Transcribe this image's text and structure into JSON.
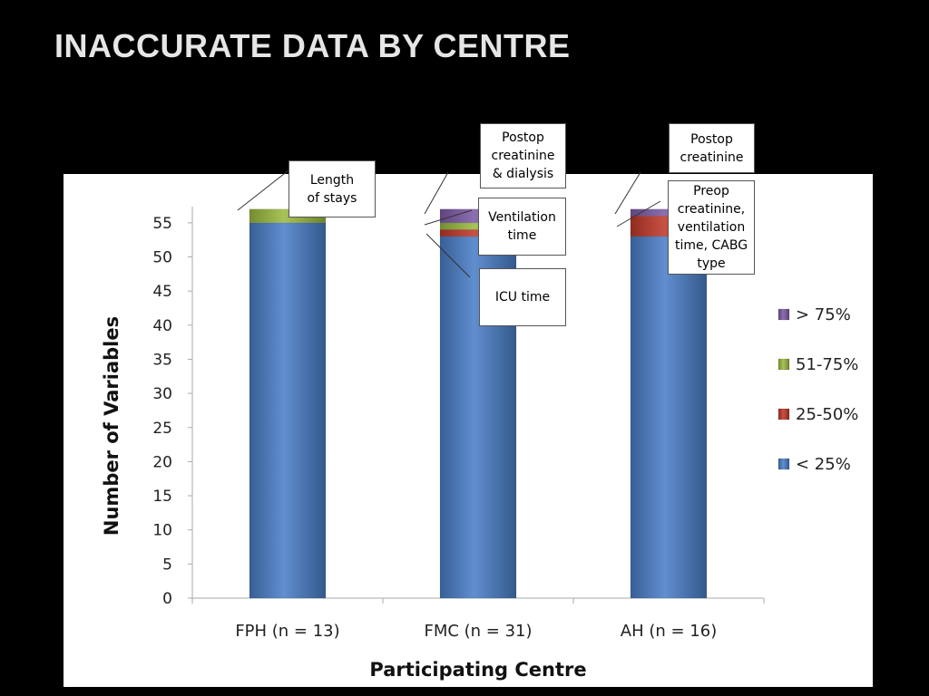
{
  "slide": {
    "title": "INACCURATE DATA BY CENTRE"
  },
  "chart_data": {
    "type": "bar",
    "stacked": true,
    "categories": [
      "FPH (n = 13)",
      "FMC (n = 31)",
      "AH (n = 16)"
    ],
    "series": [
      {
        "name": "< 25%",
        "color": "#4a7fc8",
        "values": [
          55,
          53,
          53
        ]
      },
      {
        "name": "25-50%",
        "color": "#c0392b",
        "values": [
          0,
          1,
          3
        ]
      },
      {
        "name": "51-75%",
        "color": "#9bbb40",
        "values": [
          2,
          1,
          0
        ]
      },
      {
        "name": "> 75%",
        "color": "#7e5ba6",
        "values": [
          0,
          2,
          1
        ]
      }
    ],
    "xlabel": "Participating Centre",
    "ylabel": "Number of Variables",
    "ylim": [
      0,
      57
    ],
    "yticks": [
      "0",
      "5",
      "10",
      "15",
      "20",
      "25",
      "30",
      "35",
      "40",
      "45",
      "50",
      "55"
    ],
    "legend_position": "right",
    "grid": false
  },
  "annotations": [
    {
      "id": "length-of-stays",
      "lines": [
        "Length",
        "of stays"
      ]
    },
    {
      "id": "postop-creatinine-dialysis",
      "lines": [
        "Postop",
        "creatinine",
        "& dialysis"
      ]
    },
    {
      "id": "ventilation-time",
      "lines": [
        "Ventilation",
        "time"
      ]
    },
    {
      "id": "icu-time",
      "lines": [
        "ICU time"
      ]
    },
    {
      "id": "postop-creatinine",
      "lines": [
        "Postop",
        "creatinine"
      ]
    },
    {
      "id": "preop-creatinine",
      "lines": [
        "Preop",
        "creatinine,",
        "ventilation",
        "time, CABG",
        "type"
      ]
    }
  ]
}
